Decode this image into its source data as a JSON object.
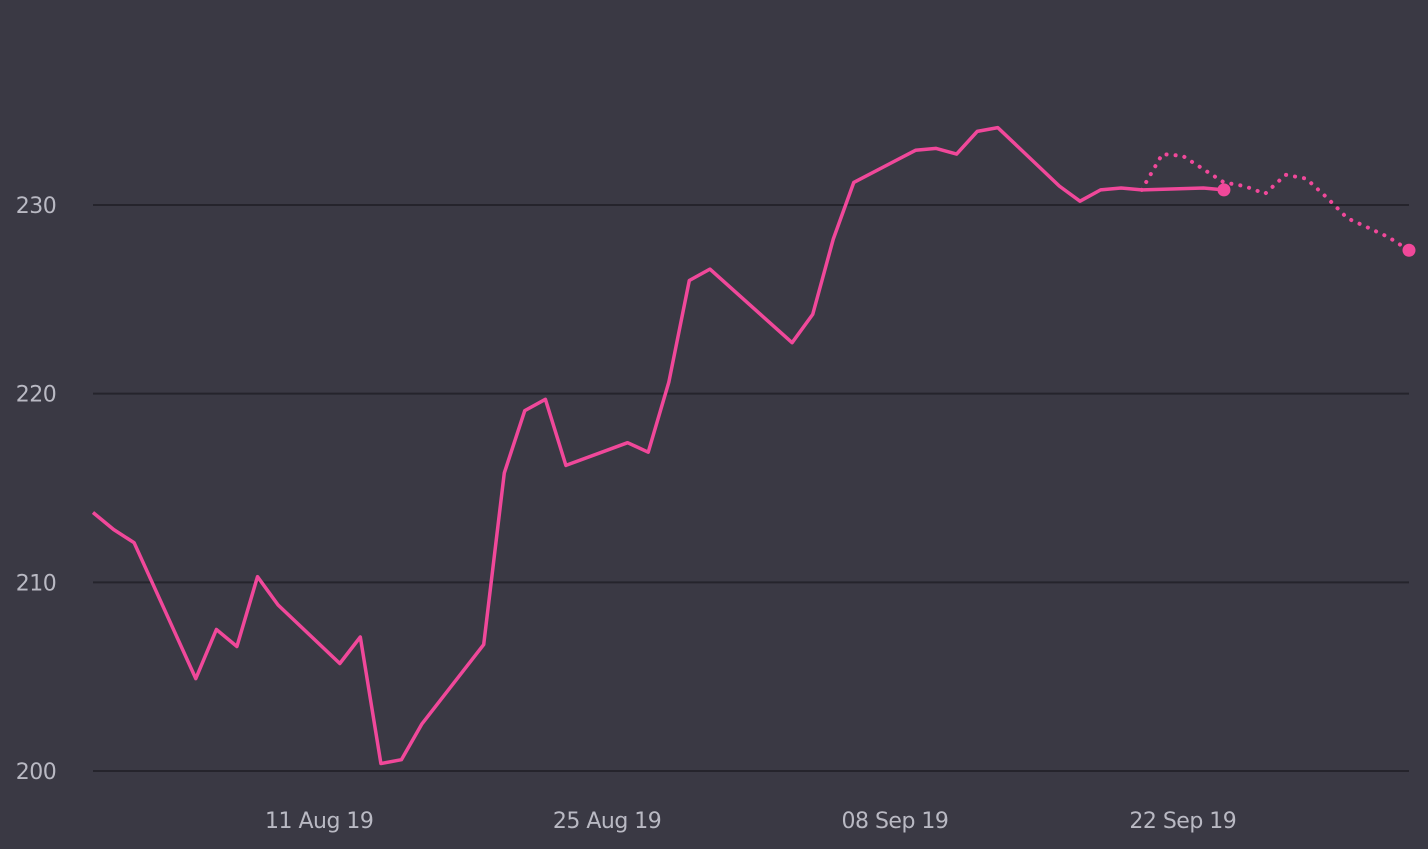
{
  "colors": {
    "background": "#3a3944",
    "series": "#f0489a",
    "grid": "#25242c",
    "tick_text": "#b9b9c3"
  },
  "chart_data": {
    "type": "line",
    "title": "",
    "xlabel": "",
    "ylabel": "",
    "xlim": [
      "2019-07-31",
      "2019-10-03"
    ],
    "ylim": [
      197,
      237
    ],
    "grid": "horizontal",
    "legend": "none",
    "y_ticks": [
      "200",
      "210",
      "220",
      "230"
    ],
    "x_ticks": [
      {
        "date": "2019-08-11",
        "label": "11 Aug 19"
      },
      {
        "date": "2019-08-25",
        "label": "25 Aug 19"
      },
      {
        "date": "2019-09-08",
        "label": "08 Sep 19"
      },
      {
        "date": "2019-09-22",
        "label": "22 Sep 19"
      }
    ],
    "series": [
      {
        "style": "solid",
        "end_marker": true,
        "x": [
          "2019-07-31",
          "2019-08-01",
          "2019-08-02",
          "2019-08-05",
          "2019-08-06",
          "2019-08-07",
          "2019-08-08",
          "2019-08-09",
          "2019-08-12",
          "2019-08-13",
          "2019-08-14",
          "2019-08-15",
          "2019-08-16",
          "2019-08-19",
          "2019-08-20",
          "2019-08-21",
          "2019-08-22",
          "2019-08-23",
          "2019-08-26",
          "2019-08-27",
          "2019-08-28",
          "2019-08-29",
          "2019-08-30",
          "2019-09-03",
          "2019-09-04",
          "2019-09-05",
          "2019-09-06",
          "2019-09-09",
          "2019-09-10",
          "2019-09-11",
          "2019-09-12",
          "2019-09-13",
          "2019-09-16",
          "2019-09-17",
          "2019-09-18",
          "2019-09-19",
          "2019-09-20",
          "2019-09-23",
          "2019-09-24"
        ],
        "values": [
          213.7,
          212.8,
          212.1,
          204.9,
          207.5,
          206.6,
          210.3,
          208.8,
          205.7,
          207.1,
          200.4,
          200.6,
          202.5,
          206.7,
          215.8,
          219.1,
          219.7,
          216.2,
          217.4,
          216.9,
          220.6,
          226.0,
          226.6,
          222.7,
          224.2,
          228.2,
          231.2,
          232.9,
          233.0,
          232.7,
          233.9,
          234.1,
          231.0,
          230.2,
          230.8,
          230.9,
          230.8,
          230.9,
          230.8
        ]
      },
      {
        "style": "dotted",
        "end_marker": true,
        "x": [
          "2019-09-20",
          "2019-09-21",
          "2019-09-22",
          "2019-09-23",
          "2019-09-24",
          "2019-09-25",
          "2019-09-26",
          "2019-09-27",
          "2019-09-28",
          "2019-09-29",
          "2019-09-30",
          "2019-10-01",
          "2019-10-02",
          "2019-10-03"
        ],
        "values": [
          230.8,
          232.7,
          232.6,
          231.9,
          231.2,
          231.0,
          230.6,
          231.6,
          231.4,
          230.4,
          229.3,
          228.8,
          228.3,
          227.6
        ]
      }
    ]
  }
}
